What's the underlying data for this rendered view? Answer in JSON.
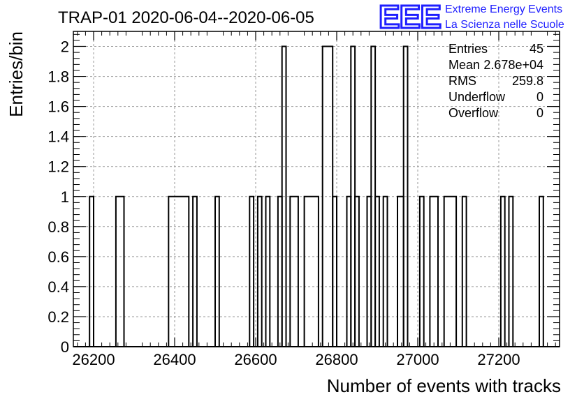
{
  "chart_data": {
    "type": "histogram",
    "title": "TRAP-01 2020-06-04--2020-06-05",
    "xlabel": "Number of events with tracks",
    "ylabel": "Entries/bin",
    "xlim": [
      26150,
      27350
    ],
    "ylim": [
      0,
      2.1
    ],
    "bin_width": 10,
    "x_ticks": [
      26200,
      26400,
      26600,
      26800,
      27000,
      27200
    ],
    "x_tick_labels": [
      "26200",
      "26400",
      "26600",
      "26800",
      "27000",
      "27200"
    ],
    "y_ticks": [
      0,
      0.2,
      0.4,
      0.6,
      0.8,
      1,
      1.2,
      1.4,
      1.6,
      1.8,
      2
    ],
    "y_tick_labels": [
      "0",
      "0.2",
      "0.4",
      "0.6",
      "0.8",
      "1",
      "1.2",
      "1.4",
      "1.6",
      "1.8",
      "2"
    ],
    "grid": true,
    "bins": [
      {
        "low": 26190,
        "high": 26200,
        "count": 1
      },
      {
        "low": 26255,
        "high": 26275,
        "count": 1
      },
      {
        "low": 26385,
        "high": 26435,
        "count": 1
      },
      {
        "low": 26445,
        "high": 26455,
        "count": 1
      },
      {
        "low": 26500,
        "high": 26510,
        "count": 1
      },
      {
        "low": 26585,
        "high": 26595,
        "count": 1
      },
      {
        "low": 26605,
        "high": 26615,
        "count": 1
      },
      {
        "low": 26625,
        "high": 26635,
        "count": 1
      },
      {
        "low": 26655,
        "high": 26665,
        "count": 1
      },
      {
        "low": 26665,
        "high": 26675,
        "count": 2
      },
      {
        "low": 26685,
        "high": 26705,
        "count": 1
      },
      {
        "low": 26720,
        "high": 26755,
        "count": 1
      },
      {
        "low": 26765,
        "high": 26790,
        "count": 2
      },
      {
        "low": 26790,
        "high": 26800,
        "count": 1
      },
      {
        "low": 26825,
        "high": 26835,
        "count": 1
      },
      {
        "low": 26835,
        "high": 26845,
        "count": 2
      },
      {
        "low": 26845,
        "high": 26855,
        "count": 1
      },
      {
        "low": 26875,
        "high": 26885,
        "count": 1
      },
      {
        "low": 26885,
        "high": 26895,
        "count": 2
      },
      {
        "low": 26895,
        "high": 26905,
        "count": 1
      },
      {
        "low": 26915,
        "high": 26925,
        "count": 1
      },
      {
        "low": 26950,
        "high": 26965,
        "count": 1
      },
      {
        "low": 26965,
        "high": 26975,
        "count": 2
      },
      {
        "low": 27005,
        "high": 27015,
        "count": 1
      },
      {
        "low": 27030,
        "high": 27050,
        "count": 1
      },
      {
        "low": 27065,
        "high": 27095,
        "count": 1
      },
      {
        "low": 27110,
        "high": 27120,
        "count": 1
      },
      {
        "low": 27205,
        "high": 27215,
        "count": 1
      },
      {
        "low": 27225,
        "high": 27235,
        "count": 1
      },
      {
        "low": 27300,
        "high": 27310,
        "count": 1
      }
    ],
    "stats": [
      {
        "label": "Entries",
        "value": "45"
      },
      {
        "label": "Mean",
        "value": "2.678e+04"
      },
      {
        "label": "RMS",
        "value": "259.8"
      },
      {
        "label": "Underflow",
        "value": "0"
      },
      {
        "label": "Overflow",
        "value": "0"
      }
    ]
  },
  "logo": {
    "mark": "EEE",
    "line1": "Extreme Energy Events",
    "line2": "La Scienza nelle Scuole",
    "color": "#1e1eff"
  }
}
